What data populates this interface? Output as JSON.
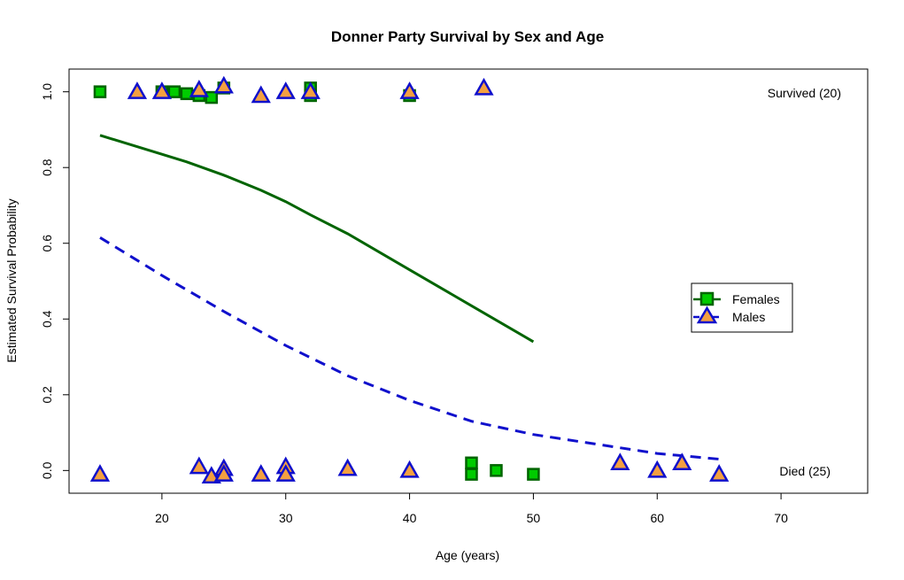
{
  "chart_data": {
    "type": "scatter",
    "title": "Donner Party Survival by Sex and Age",
    "xlabel": "Age (years)",
    "ylabel": "Estimated Survival Probability",
    "xlim": [
      12.5,
      77
    ],
    "ylim": [
      -0.06,
      1.06
    ],
    "xticks": [
      20,
      30,
      40,
      50,
      60,
      70
    ],
    "yticks": [
      0.0,
      0.2,
      0.4,
      0.6,
      0.8,
      1.0
    ],
    "ytick_labels": [
      "0.0",
      "0.2",
      "0.4",
      "0.6",
      "0.8",
      "1.0"
    ],
    "annotations": {
      "survived": "Survived (20)",
      "died": "Died (25)"
    },
    "legend": {
      "position": "right",
      "entries": [
        "Females",
        "Males"
      ]
    },
    "series": [
      {
        "name": "Females",
        "marker": "square",
        "fill": "#00cc00",
        "stroke": "#006400",
        "points": [
          [
            15,
            1.0
          ],
          [
            20,
            1.0
          ],
          [
            21,
            1.0
          ],
          [
            22,
            0.995
          ],
          [
            23,
            0.99
          ],
          [
            24,
            0.985
          ],
          [
            25,
            1.01
          ],
          [
            32,
            1.01
          ],
          [
            32,
            0.99
          ],
          [
            40,
            0.99
          ],
          [
            45,
            0.02
          ],
          [
            45,
            -0.01
          ],
          [
            47,
            0.0
          ],
          [
            50,
            -0.01
          ]
        ]
      },
      {
        "name": "Males",
        "marker": "triangle",
        "fill": "#f4a040",
        "stroke": "#1010cc",
        "points": [
          [
            15,
            -0.01
          ],
          [
            18,
            1.0
          ],
          [
            20,
            1.0
          ],
          [
            23,
            1.005
          ],
          [
            25,
            1.015
          ],
          [
            28,
            0.99
          ],
          [
            30,
            1.0
          ],
          [
            32,
            1.0
          ],
          [
            40,
            1.0
          ],
          [
            46,
            1.01
          ],
          [
            23,
            0.01
          ],
          [
            24,
            -0.015
          ],
          [
            25,
            0.005
          ],
          [
            25,
            -0.01
          ],
          [
            28,
            -0.01
          ],
          [
            30,
            0.01
          ],
          [
            30,
            -0.01
          ],
          [
            35,
            0.005
          ],
          [
            40,
            0.0
          ],
          [
            57,
            0.02
          ],
          [
            60,
            0.0
          ],
          [
            62,
            0.02
          ],
          [
            65,
            -0.01
          ]
        ]
      }
    ],
    "curves": [
      {
        "name": "Females",
        "color": "#006400",
        "dash": "solid",
        "x": [
          15,
          20,
          22,
          25,
          28,
          30,
          32,
          35,
          40,
          45,
          50
        ],
        "y": [
          0.885,
          0.835,
          0.815,
          0.78,
          0.74,
          0.71,
          0.675,
          0.625,
          0.53,
          0.435,
          0.34
        ]
      },
      {
        "name": "Males",
        "color": "#1010cc",
        "dash": "dashed",
        "x": [
          15,
          20,
          25,
          30,
          35,
          40,
          45,
          50,
          55,
          60,
          65
        ],
        "y": [
          0.615,
          0.515,
          0.42,
          0.33,
          0.25,
          0.185,
          0.13,
          0.095,
          0.07,
          0.045,
          0.03
        ]
      }
    ]
  }
}
